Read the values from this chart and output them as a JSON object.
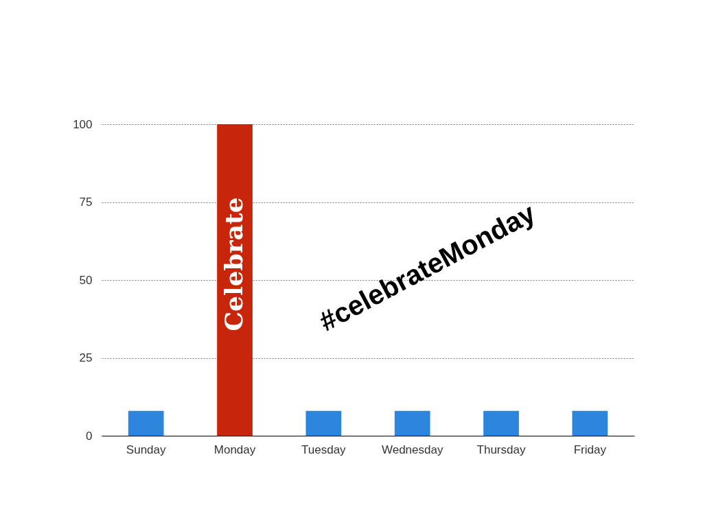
{
  "chart_data": {
    "type": "bar",
    "categories": [
      "Sunday",
      "Monday",
      "Tuesday",
      "Wednesday",
      "Thursday",
      "Friday"
    ],
    "values": [
      8,
      100,
      8,
      8,
      8,
      8
    ],
    "colors": [
      "#2e86dc",
      "#c8260a",
      "#2e86dc",
      "#2e86dc",
      "#2e86dc",
      "#2e86dc"
    ],
    "ylim": [
      0,
      100
    ],
    "yticks": [
      0,
      25,
      50,
      75,
      100
    ],
    "grid": "y",
    "annotations": [
      "Celebrate",
      "#celebrateMonday"
    ]
  }
}
